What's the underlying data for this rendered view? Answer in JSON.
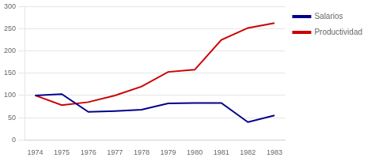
{
  "chart_data": {
    "type": "line",
    "x": [
      1974,
      1975,
      1976,
      1977,
      1978,
      1979,
      1980,
      1981,
      1982,
      1983
    ],
    "series": [
      {
        "name": "Salarios",
        "color": "#00008B",
        "values": [
          100,
          103,
          63,
          65,
          68,
          82,
          83,
          83,
          40,
          55
        ]
      },
      {
        "name": "Productividad",
        "color": "#CC0000",
        "values": [
          100,
          78,
          85,
          100,
          120,
          153,
          158,
          225,
          252,
          263
        ]
      }
    ],
    "xlim": [
      1973.6,
      1983.4
    ],
    "xticks": [
      1974,
      1975,
      1976,
      1977,
      1978,
      1979,
      1980,
      1981,
      1982,
      1983
    ],
    "ylim": [
      0,
      300
    ],
    "yticks": [
      0,
      50,
      100,
      150,
      200,
      250,
      300
    ],
    "grid": true,
    "legend": "right"
  }
}
